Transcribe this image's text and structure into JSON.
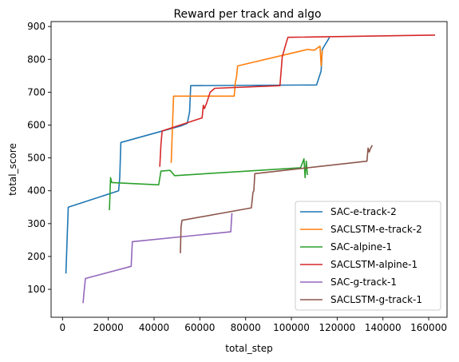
{
  "chart_data": {
    "type": "line",
    "title": "Reward per track and algo",
    "xlabel": "total_step",
    "ylabel": "total_score",
    "xlim": [
      -5000,
      168000
    ],
    "ylim": [
      15,
      915
    ],
    "xticks": [
      0,
      20000,
      40000,
      60000,
      80000,
      100000,
      120000,
      140000,
      160000
    ],
    "xtick_labels": [
      "0",
      "20000",
      "40000",
      "60000",
      "80000",
      "100000",
      "120000",
      "140000",
      "160000"
    ],
    "yticks": [
      100,
      200,
      300,
      400,
      500,
      600,
      700,
      800,
      900
    ],
    "ytick_labels": [
      "100",
      "200",
      "300",
      "400",
      "500",
      "600",
      "700",
      "800",
      "900"
    ],
    "grid": false,
    "legend_position": "lower-right",
    "series": [
      {
        "name": "SAC-e-track-2",
        "color": "#1f77b4",
        "x": [
          1500,
          2500,
          24500,
          25000,
          25500,
          52000,
          54500,
          55500,
          56000,
          111000,
          113000,
          113500,
          116500
        ],
        "y": [
          150,
          350,
          400,
          440,
          547,
          598,
          605,
          640,
          720,
          722,
          765,
          830,
          865
        ]
      },
      {
        "name": "SACLSTM-e-track-2",
        "color": "#ff7f0e",
        "x": [
          47500,
          48000,
          48500,
          75000,
          75500,
          76000,
          76500,
          107000,
          110000,
          112500,
          113000,
          113500
        ],
        "y": [
          487,
          590,
          688,
          688,
          730,
          745,
          780,
          830,
          828,
          840,
          780,
          825
        ]
      },
      {
        "name": "SAC-alpine-1",
        "color": "#2ca02c",
        "x": [
          20500,
          21000,
          21500,
          42000,
          43000,
          47000,
          49000,
          104000,
          105500,
          106000,
          106500,
          107000
        ],
        "y": [
          343,
          440,
          425,
          418,
          460,
          462,
          446,
          470,
          497,
          440,
          490,
          450
        ]
      },
      {
        "name": "SACLSTM-alpine-1",
        "color": "#d62728",
        "x": [
          42500,
          43000,
          43500,
          61000,
          61500,
          62000,
          63000,
          64500,
          66500,
          95000,
          96000,
          97500,
          98500,
          162500
        ],
        "y": [
          475,
          540,
          582,
          622,
          660,
          650,
          668,
          700,
          712,
          720,
          808,
          845,
          867,
          874
        ]
      },
      {
        "name": "SAC-g-track-1",
        "color": "#9467bd",
        "x": [
          9000,
          9500,
          10000,
          30000,
          30500,
          73500,
          74000
        ],
        "y": [
          60,
          100,
          133,
          170,
          245,
          275,
          330
        ]
      },
      {
        "name": "SACLSTM-g-track-1",
        "color": "#8c564b",
        "x": [
          51500,
          51800,
          52200,
          82500,
          83200,
          83600,
          84000,
          133000,
          133500,
          134000,
          134500,
          135200
        ],
        "y": [
          212,
          290,
          310,
          348,
          395,
          400,
          452,
          490,
          530,
          518,
          528,
          537
        ]
      }
    ]
  }
}
